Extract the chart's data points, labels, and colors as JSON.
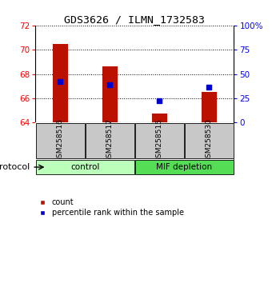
{
  "title": "GDS3626 / ILMN_1732583",
  "samples": [
    "GSM258516",
    "GSM258517",
    "GSM258515",
    "GSM258530"
  ],
  "counts": [
    70.45,
    68.6,
    64.75,
    66.5
  ],
  "percentile_ranks": [
    42,
    39,
    22,
    36
  ],
  "bar_color": "#bb1100",
  "dot_color": "#0000cc",
  "ylim_left": [
    64,
    72
  ],
  "ylim_right": [
    0,
    100
  ],
  "yticks_left": [
    64,
    66,
    68,
    70,
    72
  ],
  "yticks_right": [
    0,
    25,
    50,
    75,
    100
  ],
  "ytick_labels_right": [
    "0",
    "25",
    "50",
    "75",
    "100%"
  ],
  "legend_count_label": "count",
  "legend_pct_label": "percentile rank within the sample",
  "protocol_label": "protocol",
  "group_data": [
    {
      "label": "control",
      "indices": [
        0,
        1
      ],
      "color": "#bbffbb"
    },
    {
      "label": "MIF depletion",
      "indices": [
        2,
        3
      ],
      "color": "#55dd55"
    }
  ],
  "bar_width": 0.3
}
